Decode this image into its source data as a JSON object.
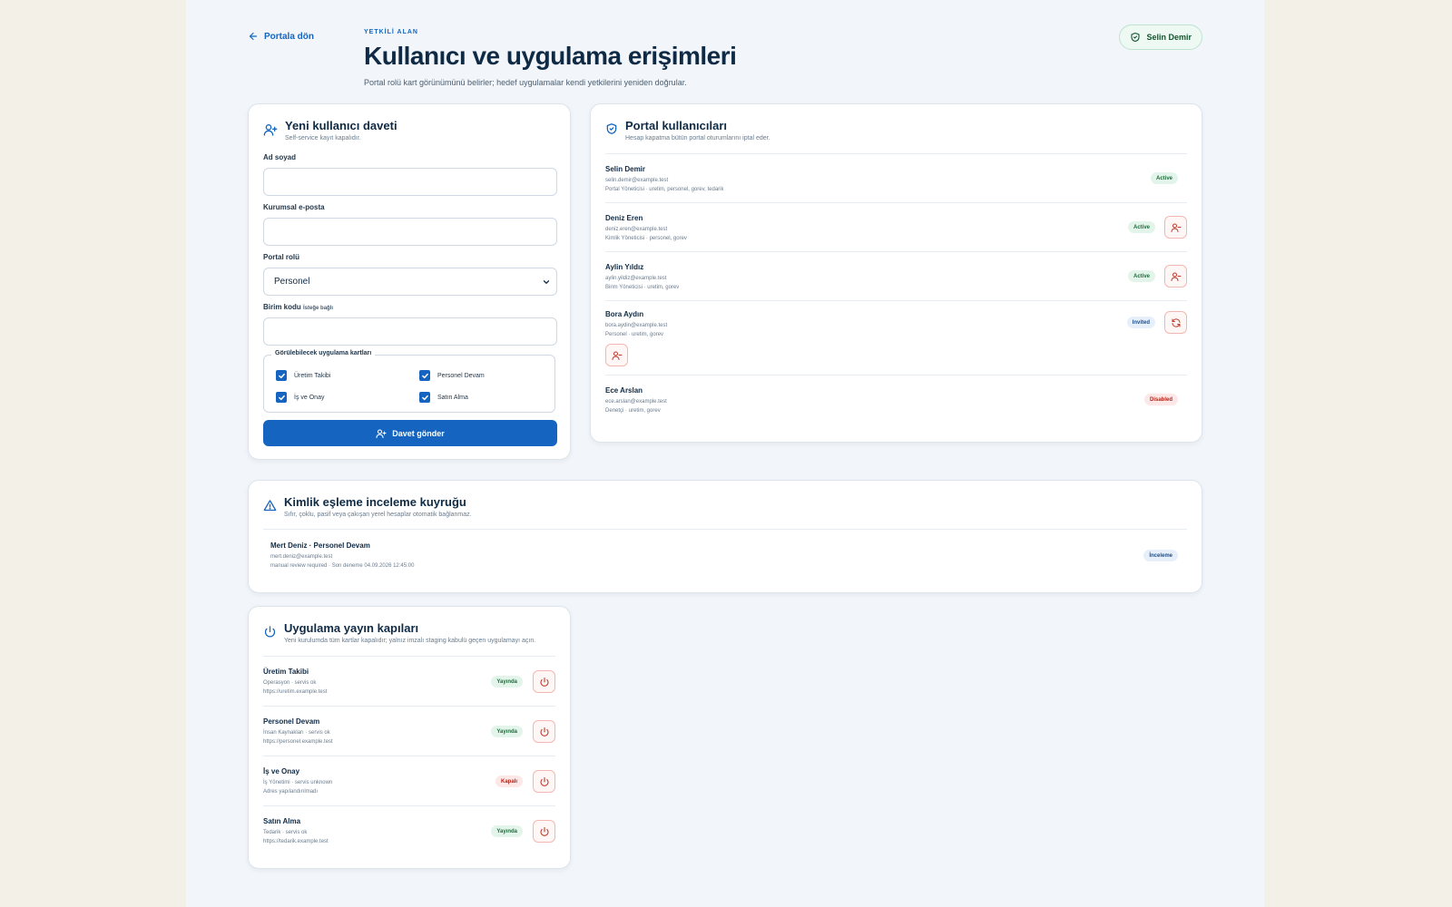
{
  "header": {
    "back_label": "Portala dön",
    "eyebrow": "YETKİLİ ALAN",
    "title": "Kullanıcı ve uygulama erişimleri",
    "subtitle": "Portal rolü kart görünümünü belirler; hedef uygulamalar kendi yetkilerini yeniden doğrular.",
    "user_name": "Selin Demir"
  },
  "invite": {
    "title": "Yeni kullanıcı daveti",
    "subtitle": "Self-service kayıt kapalıdır.",
    "name_label": "Ad soyad",
    "name_value": "",
    "email_label": "Kurumsal e-posta",
    "email_value": "",
    "role_label": "Portal rolü",
    "role_value": "Personel",
    "unit_label": "Birim kodu",
    "unit_optional": "İsteğe bağlı",
    "unit_value": "",
    "apps_legend": "Görülebilecek uygulama kartları",
    "apps": [
      {
        "label": "Üretim Takibi",
        "checked": true
      },
      {
        "label": "Personel Devam",
        "checked": true
      },
      {
        "label": "İş ve Onay",
        "checked": true
      },
      {
        "label": "Satın Alma",
        "checked": true
      }
    ],
    "submit_label": "Davet gönder"
  },
  "users": {
    "title": "Portal kullanıcıları",
    "subtitle": "Hesap kapatma bütün portal oturumlarını iptal eder.",
    "items": [
      {
        "name": "Selin Demir",
        "email": "selin.demir@example.test",
        "role": "Portal Yöneticisi · uretim, personel, gorev, tedarik",
        "status": "Active"
      },
      {
        "name": "Deniz Eren",
        "email": "deniz.eren@example.test",
        "role": "Kimlik Yöneticisi · personel, gorev",
        "status": "Active"
      },
      {
        "name": "Aylin Yıldız",
        "email": "aylin.yildiz@example.test",
        "role": "Birim Yöneticisi · uretim, gorev",
        "status": "Active"
      },
      {
        "name": "Bora Aydın",
        "email": "bora.aydin@example.test",
        "role": "Personel · uretim, gorev",
        "status": "Invited"
      },
      {
        "name": "Ece Arslan",
        "email": "ece.arslan@example.test",
        "role": "Denetçi · uretim, gorev",
        "status": "Disabled"
      }
    ]
  },
  "queue": {
    "title": "Kimlik eşleme inceleme kuyruğu",
    "subtitle": "Sıfır, çoklu, pasif veya çakışan yerel hesaplar otomatik bağlanmaz.",
    "item": {
      "title": "Mert Deniz · Personel Devam",
      "email": "mert.deniz@example.test",
      "meta": "manual review required · Son deneme 04.09.2026 12:45:00",
      "status": "İnceleme"
    }
  },
  "gates": {
    "title": "Uygulama yayın kapıları",
    "subtitle": "Yeni kurulumda tüm kartlar kapalıdır; yalnız imzalı staging kabulü geçen uygulamayı açın.",
    "items": [
      {
        "name": "Üretim Takibi",
        "meta": "Operasyon · servis ok",
        "url": "https://uretim.example.test",
        "status": "Yayında"
      },
      {
        "name": "Personel Devam",
        "meta": "İnsan Kaynakları · servis ok",
        "url": "https://personel.example.test",
        "status": "Yayında"
      },
      {
        "name": "İş ve Onay",
        "meta": "İş Yönetimi · servis unknown",
        "url": "Adres yapılandırılmadı",
        "status": "Kapalı"
      },
      {
        "name": "Satın Alma",
        "meta": "Tedarik · servis ok",
        "url": "https://tedarik.example.test",
        "status": "Yayında"
      }
    ]
  },
  "colors": {
    "accent": "#1565c0",
    "danger": "#c0392b",
    "success": "#1d6b3a",
    "page_bg": "#f2f6fa",
    "outer_bg": "#f3f0e7"
  }
}
